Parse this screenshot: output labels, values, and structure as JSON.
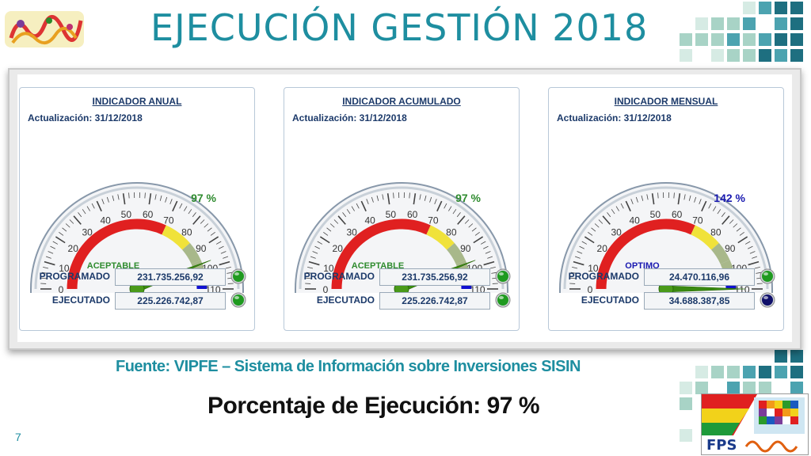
{
  "slide": {
    "title": "EJECUCIÓN GESTIÓN 2018",
    "source": "Fuente: VIPFE – Sistema de Información sobre Inversiones SISIN",
    "percentage": "Porcentaje de  Ejecución: 97 %",
    "page_number": "7",
    "logo_text": "FPS"
  },
  "colors": {
    "teal": "#1e8ea0",
    "navy": "#1c3a6a",
    "zone_red": "#e02020",
    "zone_yellow": "#f0e23a",
    "zone_green": "#a8b88a",
    "zone_blue": "#1010d0",
    "needle": "#3a8a10",
    "led_green": "#1f9a1f",
    "led_blue": "#10106a"
  },
  "gauges": [
    {
      "header": "INDICADOR ANUAL",
      "update": "Actualización: 31/12/2018",
      "percent_label": "97 %",
      "value": 97,
      "status": "ACEPTABLE",
      "status_color": "#2e8b2e",
      "percent_color": "#2e8b2e",
      "programado_label": "PROGRAMADO",
      "programado_value": "231.735.256,92",
      "programado_led": "green",
      "ejecutado_label": "EJECUTADO",
      "ejecutado_value": "225.226.742,87",
      "ejecutado_led": "green"
    },
    {
      "header": "INDICADOR ACUMULADO",
      "update": "Actualización: 31/12/2018",
      "percent_label": "97 %",
      "value": 97,
      "status": "ACEPTABLE",
      "status_color": "#2e8b2e",
      "percent_color": "#2e8b2e",
      "programado_label": "PROGRAMADO",
      "programado_value": "231.735.256,92",
      "programado_led": "green",
      "ejecutado_label": "EJECUTADO",
      "ejecutado_value": "225.226.742,87",
      "ejecutado_led": "green"
    },
    {
      "header": "INDICADOR MENSUAL",
      "update": "Actualización: 31/12/2018",
      "percent_label": "142 %",
      "value": 110,
      "status": "OPTIMO",
      "status_color": "#1818b0",
      "percent_color": "#1818b0",
      "programado_label": "PROGRAMADO",
      "programado_value": "24.470.116,96",
      "programado_led": "green",
      "ejecutado_label": "EJECUTADO",
      "ejecutado_value": "34.688.387,85",
      "ejecutado_led": "blue"
    }
  ],
  "scale": {
    "min": 0,
    "max": 110,
    "labels": [
      "0",
      "10",
      "20",
      "30",
      "40",
      "50",
      "60",
      "70",
      "80",
      "90",
      "100",
      "110"
    ],
    "zones": [
      {
        "from": 0,
        "to": 70,
        "color": "#e02020"
      },
      {
        "from": 70,
        "to": 85,
        "color": "#f0e23a"
      },
      {
        "from": 85,
        "to": 95,
        "color": "#a8b88a"
      },
      {
        "from": 95,
        "to": 101,
        "color": "#a8b88a"
      },
      {
        "from": 101,
        "to": 110,
        "color": "#1010d0"
      }
    ]
  }
}
